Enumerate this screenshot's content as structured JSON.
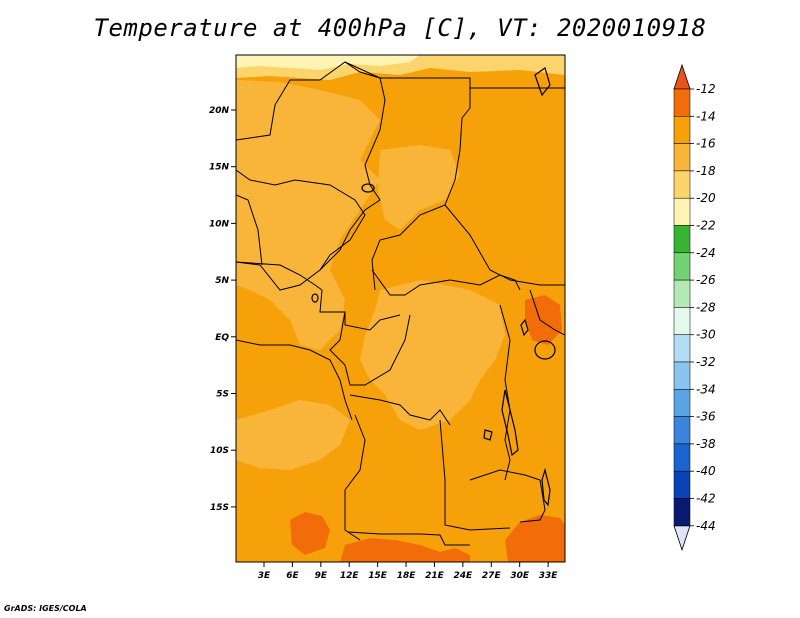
{
  "title": "Temperature at 400hPa [C], VT: 2020010918",
  "credit": "GrADS: IGES/COLA",
  "lat_ticks": [
    {
      "label": "20N",
      "value": 20
    },
    {
      "label": "15N",
      "value": 15
    },
    {
      "label": "10N",
      "value": 10
    },
    {
      "label": "5N",
      "value": 5
    },
    {
      "label": "EQ",
      "value": 0
    },
    {
      "label": "5S",
      "value": -5
    },
    {
      "label": "10S",
      "value": -10
    },
    {
      "label": "15S",
      "value": -15
    }
  ],
  "lon_ticks": [
    {
      "label": "3E",
      "value": 3
    },
    {
      "label": "6E",
      "value": 6
    },
    {
      "label": "9E",
      "value": 9
    },
    {
      "label": "12E",
      "value": 12
    },
    {
      "label": "15E",
      "value": 15
    },
    {
      "label": "18E",
      "value": 18
    },
    {
      "label": "21E",
      "value": 21
    },
    {
      "label": "24E",
      "value": 24
    },
    {
      "label": "27E",
      "value": 27
    },
    {
      "label": "30E",
      "value": 30
    },
    {
      "label": "33E",
      "value": 33
    }
  ],
  "colorbar": {
    "labels": [
      "-12",
      "-14",
      "-16",
      "-18",
      "-20",
      "-22",
      "-24",
      "-26",
      "-28",
      "-30",
      "-32",
      "-34",
      "-36",
      "-38",
      "-40",
      "-42",
      "-44"
    ],
    "colors": [
      "#e8541a",
      "#f26d0a",
      "#f6a10a",
      "#f9b53a",
      "#fcd46c",
      "#fff4b4",
      "#34b534",
      "#74d274",
      "#b4e8b4",
      "#e4f8ec",
      "#b4dcf4",
      "#8ac4ec",
      "#5aa4e4",
      "#3a84dc",
      "#1a64d0",
      "#0a44b4",
      "#0a1a70"
    ],
    "top_arrow_color": "#e8541a",
    "bottom_arrow_color": "#e0e4f8"
  },
  "field_colors": {
    "dominant": "#f6a10a",
    "warm_patch": "#f26d0a",
    "cool_region": "#f9b53a",
    "cooler_region": "#fcd46c",
    "coolest_region": "#fff4b4"
  }
}
